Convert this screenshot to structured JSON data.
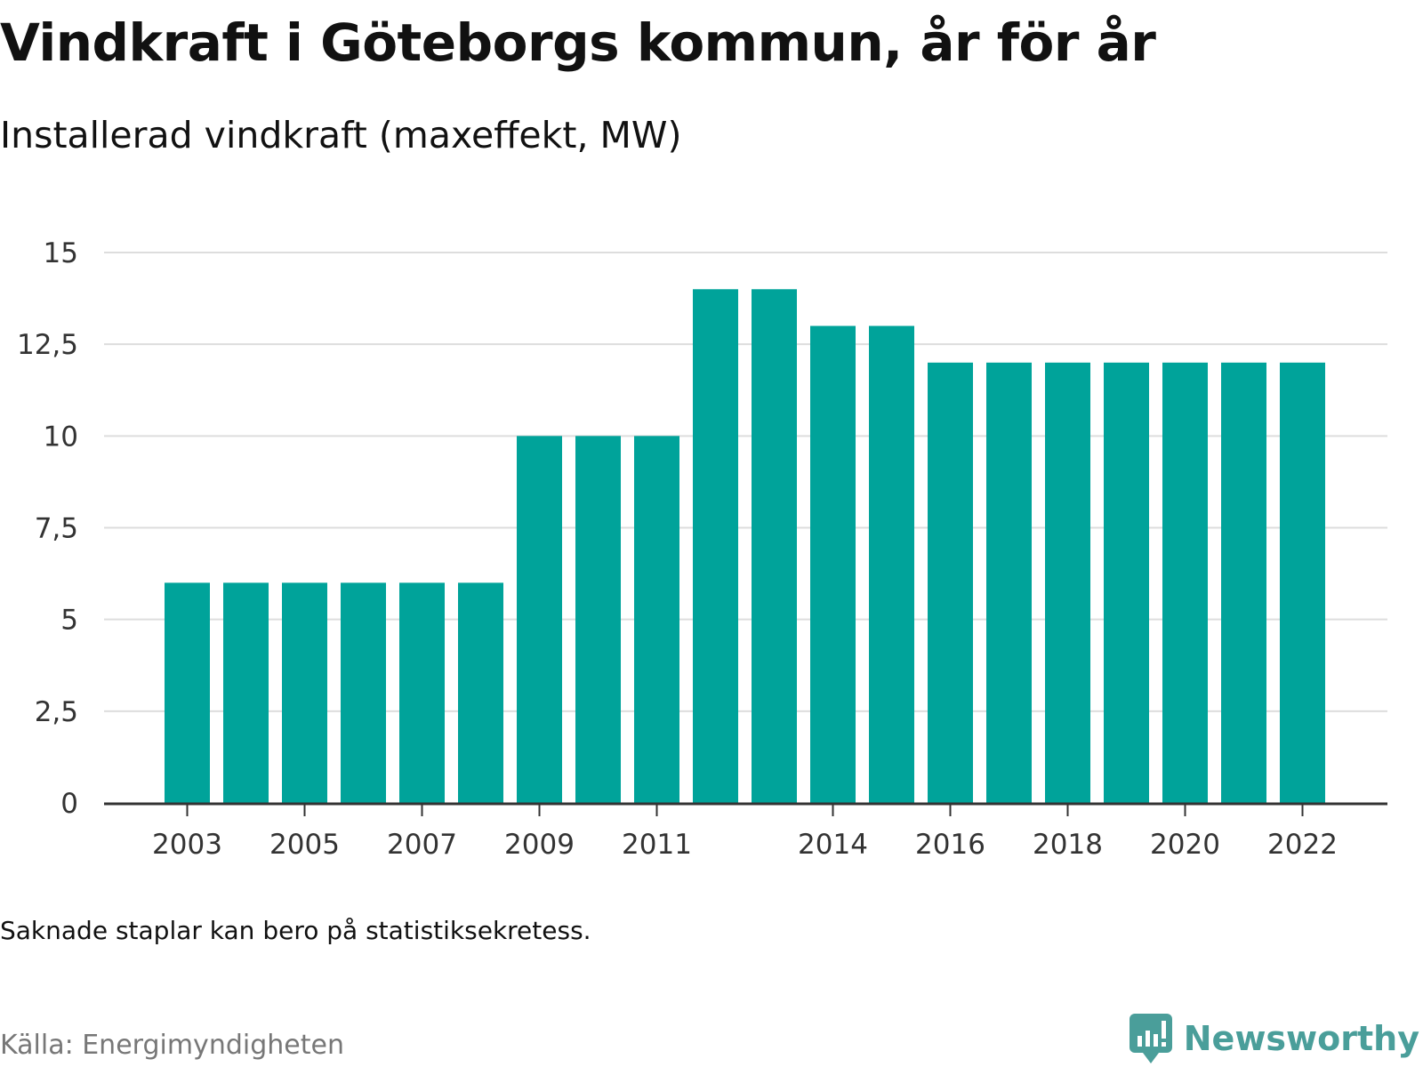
{
  "header": {
    "title": "Vindkraft i Göteborgs kommun, år för år",
    "subtitle": "Installerad vindkraft (maxeffekt, MW)"
  },
  "footer": {
    "note": "Saknade staplar kan bero på statistiksekretess.",
    "source": "Källa: Energimyndigheten",
    "brand": "Newsworthy"
  },
  "colors": {
    "bar": "#00a39a",
    "grid": "#dddddd",
    "axis": "#333333",
    "brand": "#4a9e9a"
  },
  "chart_data": {
    "type": "bar",
    "title": "Vindkraft i Göteborgs kommun, år för år",
    "subtitle": "Installerad vindkraft (maxeffekt, MW)",
    "categories": [
      "2003",
      "2004",
      "2005",
      "2006",
      "2007",
      "2008",
      "2009",
      "2010",
      "2011",
      "2012",
      "2013",
      "2014",
      "2015",
      "2016",
      "2017",
      "2018",
      "2019",
      "2020",
      "2021",
      "2022"
    ],
    "values": [
      6,
      6,
      6,
      6,
      6,
      6,
      10,
      10,
      10,
      14,
      14,
      13,
      13,
      12,
      12,
      12,
      12,
      12,
      12,
      12
    ],
    "x_tick_labels": [
      "2003",
      "2005",
      "2007",
      "2009",
      "2011",
      "2014",
      "2016",
      "2018",
      "2020",
      "2022"
    ],
    "y_ticks": [
      0,
      2.5,
      5,
      7.5,
      10,
      12.5,
      15
    ],
    "y_tick_labels": [
      "0",
      "2,5",
      "5",
      "7,5",
      "10",
      "12,5",
      "15"
    ],
    "ylim": [
      0,
      15
    ],
    "grid": true,
    "legend": false
  }
}
